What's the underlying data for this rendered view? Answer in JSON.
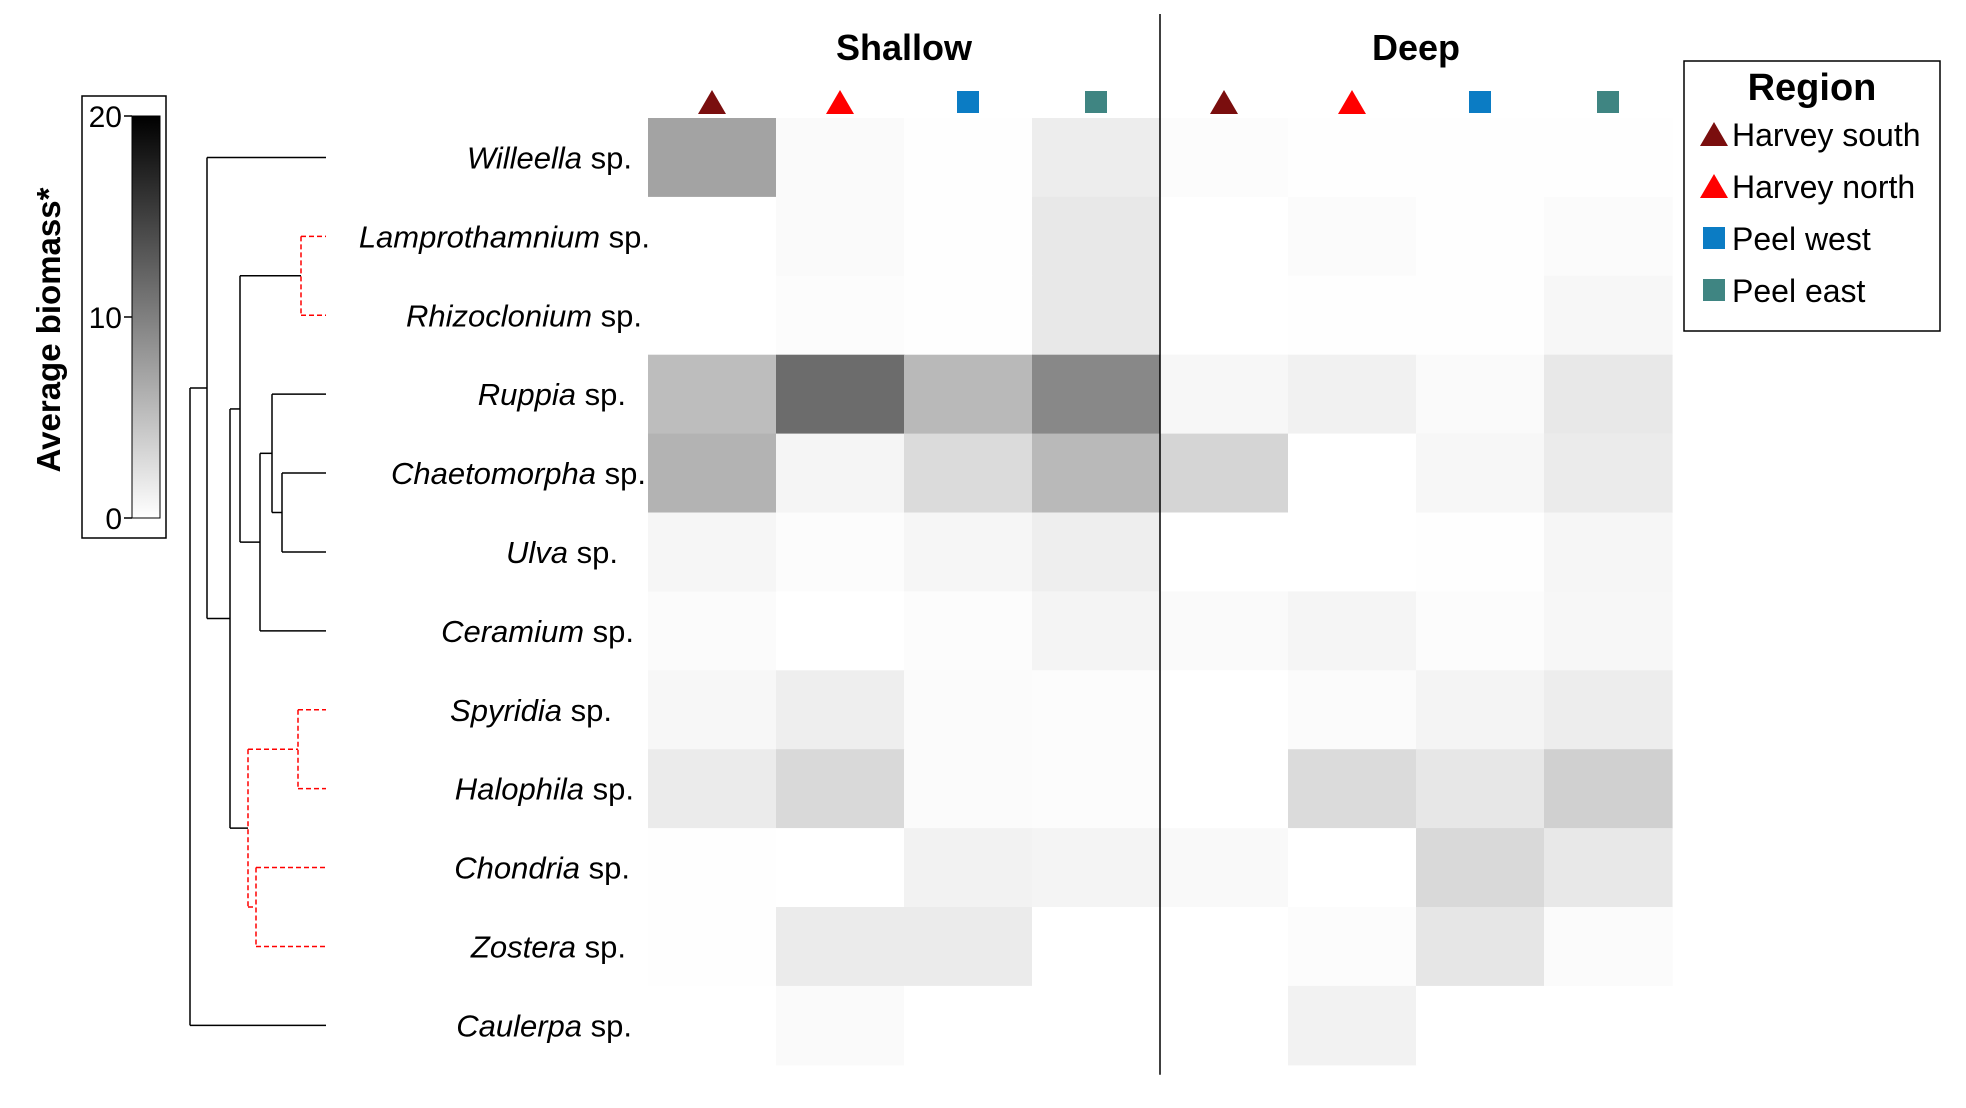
{
  "chart_data": {
    "type": "heatmap",
    "groups": [
      "Shallow",
      "Deep"
    ],
    "columns": [
      {
        "group": "Shallow",
        "region": "Harvey south"
      },
      {
        "group": "Shallow",
        "region": "Harvey north"
      },
      {
        "group": "Shallow",
        "region": "Peel west"
      },
      {
        "group": "Shallow",
        "region": "Peel east"
      },
      {
        "group": "Deep",
        "region": "Harvey south"
      },
      {
        "group": "Deep",
        "region": "Harvey north"
      },
      {
        "group": "Deep",
        "region": "Peel west"
      },
      {
        "group": "Deep",
        "region": "Peel east"
      }
    ],
    "rows": [
      {
        "genus": "Willeella",
        "suffix": " sp."
      },
      {
        "genus": "Lamprothamnium",
        "suffix": " sp."
      },
      {
        "genus": "Rhizoclonium",
        "suffix": " sp."
      },
      {
        "genus": "Ruppia",
        "suffix": " sp."
      },
      {
        "genus": "Chaetomorpha",
        "suffix": " sp."
      },
      {
        "genus": "Ulva",
        "suffix": " sp."
      },
      {
        "genus": "Ceramium",
        "suffix": " sp."
      },
      {
        "genus": "Spyridia",
        "suffix": " sp."
      },
      {
        "genus": "Halophila",
        "suffix": " sp."
      },
      {
        "genus": "Chondria",
        "suffix": " sp."
      },
      {
        "genus": "Zostera",
        "suffix": " sp."
      },
      {
        "genus": "Caulerpa",
        "suffix": " sp."
      }
    ],
    "values": [
      [
        7.2,
        0.4,
        0.1,
        1.4,
        0.2,
        0.1,
        0.1,
        0.1
      ],
      [
        0.0,
        0.4,
        0.1,
        1.8,
        0.0,
        0.3,
        0.1,
        0.3
      ],
      [
        0.0,
        0.2,
        0.1,
        1.8,
        0.0,
        0.1,
        0.1,
        0.6
      ],
      [
        5.2,
        11.5,
        5.5,
        9.3,
        0.6,
        1.1,
        0.4,
        1.8
      ],
      [
        6.0,
        0.8,
        2.8,
        5.5,
        3.3,
        0.0,
        0.6,
        1.6
      ],
      [
        0.7,
        0.2,
        0.7,
        1.3,
        0.0,
        0.0,
        0.1,
        0.7
      ],
      [
        0.3,
        0.0,
        0.2,
        0.9,
        0.4,
        0.8,
        0.2,
        0.6
      ],
      [
        0.6,
        1.3,
        0.3,
        0.2,
        0.0,
        0.3,
        0.9,
        1.4
      ],
      [
        1.6,
        3.0,
        0.3,
        0.2,
        0.0,
        2.8,
        1.9,
        3.7
      ],
      [
        0.1,
        0.0,
        1.0,
        0.9,
        0.5,
        0.0,
        3.0,
        1.8
      ],
      [
        0.1,
        1.6,
        1.6,
        0.0,
        0.0,
        0.2,
        2.0,
        0.3
      ],
      [
        0.0,
        0.4,
        0.0,
        0.0,
        0.0,
        1.0,
        0.0,
        0.0
      ]
    ],
    "colorbar": {
      "label": "Average biomass*",
      "min": 0,
      "max": 20,
      "ticks": [
        "0",
        "10",
        "20"
      ],
      "low_color": "#ffffff",
      "high_color": "#000000"
    },
    "legend": {
      "title": "Region",
      "placement": "top-right",
      "entries": [
        {
          "label": "Harvey south",
          "shape": "triangle",
          "color": "#7a0e0e"
        },
        {
          "label": "Harvey north",
          "shape": "triangle",
          "color": "#ff0000"
        },
        {
          "label": "Peel west",
          "shape": "square",
          "color": "#0b7cc4"
        },
        {
          "label": "Peel east",
          "shape": "square",
          "color": "#3f8582"
        }
      ]
    },
    "dendrogram": {
      "line_color": "#000000",
      "highlight_color": "#ff0000",
      "highlighted_clusters": [
        [
          "Lamprothamnium",
          "Rhizoclonium"
        ],
        [
          "Spyridia",
          "Halophila"
        ],
        [
          "Chondria",
          "Zostera"
        ]
      ]
    }
  }
}
